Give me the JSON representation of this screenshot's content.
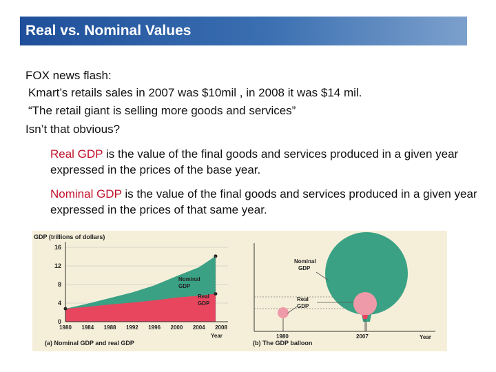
{
  "slide": {
    "title": "Real vs. Nominal Values",
    "flash_lines": [
      "FOX news flash:",
      "Kmart’s retails sales in 2007 was $10mil , in 2008 it was $14 mil.",
      "“The retail giant is selling more goods and services”",
      "Isn’t that obvious?"
    ],
    "definitions": [
      {
        "term": "Real GDP",
        "text": " is the value of the final goods and services produced in a given year expressed in the prices of the base year."
      },
      {
        "term": "Nominal GDP",
        "text": " is the value of the final goods and services produced in a given year expressed in the prices of that same year."
      }
    ],
    "term_color": "#c0102a"
  },
  "figure": {
    "panel_a": {
      "title": "GDP (trillions of dollars)",
      "caption": "(a) Nominal GDP and real GDP",
      "xlabel": "Year",
      "y_ticks": [
        "0",
        "4",
        "8",
        "12",
        "16"
      ],
      "x_ticks": [
        "1980",
        "1984",
        "1988",
        "1992",
        "1996",
        "2000",
        "2004",
        "2008"
      ],
      "nominal_label": [
        "Nominal",
        "GDP"
      ],
      "real_label": [
        "Real",
        "GDP"
      ]
    },
    "panel_b": {
      "caption": "(b) The GDP balloon",
      "xlabel": "Year",
      "x_ticks": [
        "1980",
        "2007"
      ],
      "nominal_label": [
        "Nominal",
        "GDP"
      ],
      "real_label": [
        "Real",
        "GDP"
      ]
    },
    "colors": {
      "nominal": "#3aa184",
      "real": "#e8455f",
      "balloon_real": "#ef9aa8"
    }
  },
  "chart_data": {
    "type": "area",
    "title": "GDP (trillions of dollars)",
    "xlabel": "Year",
    "ylabel": "GDP (trillions of dollars)",
    "ylim": [
      0,
      16
    ],
    "x": [
      1980,
      1984,
      1988,
      1992,
      1996,
      2000,
      2004,
      2007
    ],
    "series": [
      {
        "name": "Nominal GDP",
        "values": [
          2.8,
          3.9,
          5.1,
          6.3,
          7.8,
          9.8,
          11.7,
          14.1
        ]
      },
      {
        "name": "Real GDP",
        "values": [
          2.8,
          3.2,
          3.7,
          4.1,
          4.6,
          5.2,
          5.6,
          6.0
        ]
      }
    ]
  }
}
